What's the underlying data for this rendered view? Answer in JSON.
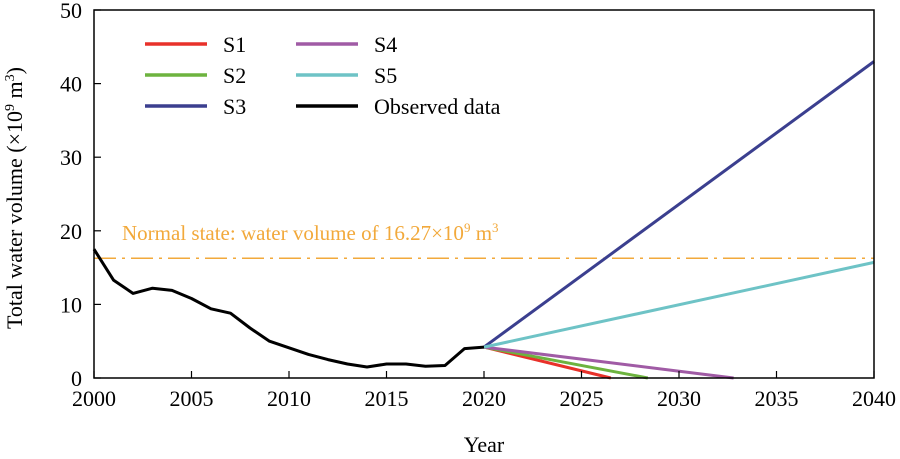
{
  "chart_data": {
    "type": "line",
    "title": "",
    "xlabel": "Year",
    "ylabel_main": "Total water volume (×10",
    "ylabel_sup": "9",
    "ylabel_mid": " m",
    "ylabel_sup2": "3",
    "ylabel_end": ")",
    "xlim": [
      2000,
      2040
    ],
    "ylim": [
      0,
      50
    ],
    "xticks": [
      2000,
      2005,
      2010,
      2015,
      2020,
      2025,
      2030,
      2035,
      2040
    ],
    "yticks": [
      0,
      10,
      20,
      30,
      40,
      50
    ],
    "grid": false,
    "legend_position": "top-left",
    "reference_line": {
      "value": 16.27,
      "color": "#F2A93B",
      "label_main": "Normal state: water volume of 16.27×10",
      "label_sup": "9",
      "label_mid": " m",
      "label_sup2": "3"
    },
    "series": [
      {
        "name": "S1",
        "color": "#E8312A",
        "x": [
          2020,
          2026.5
        ],
        "y": [
          4.2,
          0
        ]
      },
      {
        "name": "S2",
        "color": "#6DB33F",
        "x": [
          2020,
          2028.4
        ],
        "y": [
          4.2,
          0
        ]
      },
      {
        "name": "S3",
        "color": "#3B3F8F",
        "x": [
          2020,
          2040
        ],
        "y": [
          4.2,
          43.0
        ]
      },
      {
        "name": "S4",
        "color": "#A05BA5",
        "x": [
          2020,
          2032.8
        ],
        "y": [
          4.2,
          0
        ]
      },
      {
        "name": "S5",
        "color": "#6EC3C6",
        "x": [
          2020,
          2040
        ],
        "y": [
          4.2,
          15.7
        ]
      },
      {
        "name": "Observed data",
        "color": "#000000",
        "x": [
          2000,
          2001,
          2002,
          2003,
          2004,
          2005,
          2006,
          2007,
          2008,
          2009,
          2010,
          2011,
          2012,
          2013,
          2014,
          2015,
          2016,
          2017,
          2018,
          2019,
          2020
        ],
        "y": [
          17.5,
          13.3,
          11.5,
          12.2,
          11.9,
          10.8,
          9.4,
          8.8,
          6.8,
          5.0,
          4.1,
          3.2,
          2.5,
          1.9,
          1.5,
          1.9,
          1.9,
          1.6,
          1.7,
          4.0,
          4.2
        ]
      }
    ],
    "legend_order": [
      "S1",
      "S2",
      "S3",
      "S4",
      "S5",
      "Observed data"
    ]
  }
}
